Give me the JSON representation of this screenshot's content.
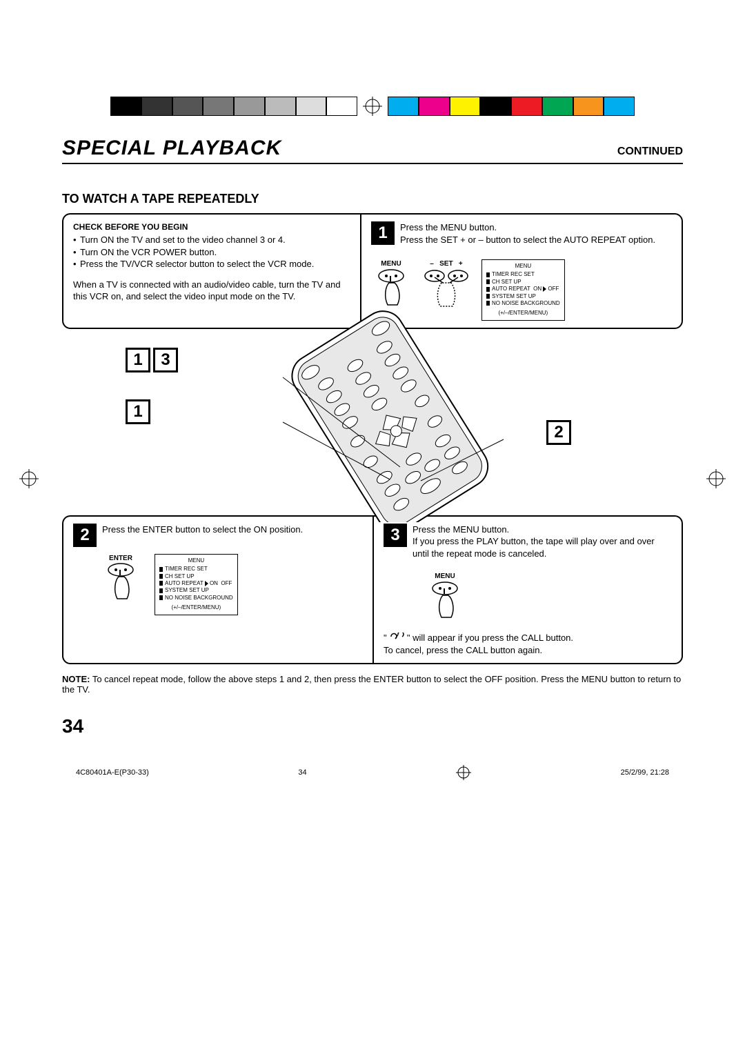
{
  "colorbar": {
    "gray": [
      "#000000",
      "#333333",
      "#555555",
      "#777777",
      "#999999",
      "#bbbbbb",
      "#dddddd",
      "#ffffff"
    ],
    "color": [
      "#00aeef",
      "#ec008c",
      "#fff200",
      "#000000",
      "#ed1c24",
      "#00a651",
      "#f7941d",
      "#00aeef"
    ]
  },
  "header": {
    "title": "SPECIAL PLAYBACK",
    "continued": "CONTINUED"
  },
  "section": {
    "title": "TO WATCH A TAPE REPEATEDLY"
  },
  "check": {
    "heading": "CHECK BEFORE YOU BEGIN",
    "b1": "Turn ON the TV and set to the video channel 3 or 4.",
    "b2": "Turn ON the VCR POWER button.",
    "b3": "Press the TV/VCR selector button to select the VCR mode.",
    "para": "When a TV is connected with an audio/video cable, turn the TV and this VCR on, and select the video input mode on the TV."
  },
  "step1": {
    "num": "1",
    "l1": "Press the MENU button.",
    "l2": "Press the SET + or – button to select the AUTO REPEAT option.",
    "menu_label": "MENU",
    "set_minus": "–",
    "set_label": "SET",
    "set_plus": "+"
  },
  "step2": {
    "num": "2",
    "text": "Press the ENTER button to select the ON position.",
    "enter_label": "ENTER"
  },
  "step3": {
    "num": "3",
    "l1": "Press the MENU button.",
    "l2": "If you press the PLAY button, the tape will play over and over until the repeat mode is canceled.",
    "menu_label": "MENU",
    "call1a": "\" ",
    "call1b": " \" will appear if you press the CALL button.",
    "call2": "To cancel, press the CALL button again."
  },
  "menu_osd": {
    "title": "MENU",
    "r1": "TIMER REC SET",
    "r2": "CH SET UP",
    "r3a": "AUTO REPEAT",
    "r3b_on": "ON",
    "r3b_off": "OFF",
    "r4": "SYSTEM SET UP",
    "r5": "NO NOISE BACKGROUND",
    "foot": "(+/–/ENTER/MENU)"
  },
  "callouts": {
    "n1": "1",
    "n3": "3",
    "n2": "2"
  },
  "note": {
    "label": "NOTE:",
    "text": "To cancel repeat mode, follow the above steps 1 and 2, then press the ENTER button to select the OFF position. Press the MENU button to return to the TV."
  },
  "page_number": "34",
  "footer": {
    "doc": "4C80401A-E(P30-33)",
    "page": "34",
    "date": "25/2/99, 21:28"
  }
}
